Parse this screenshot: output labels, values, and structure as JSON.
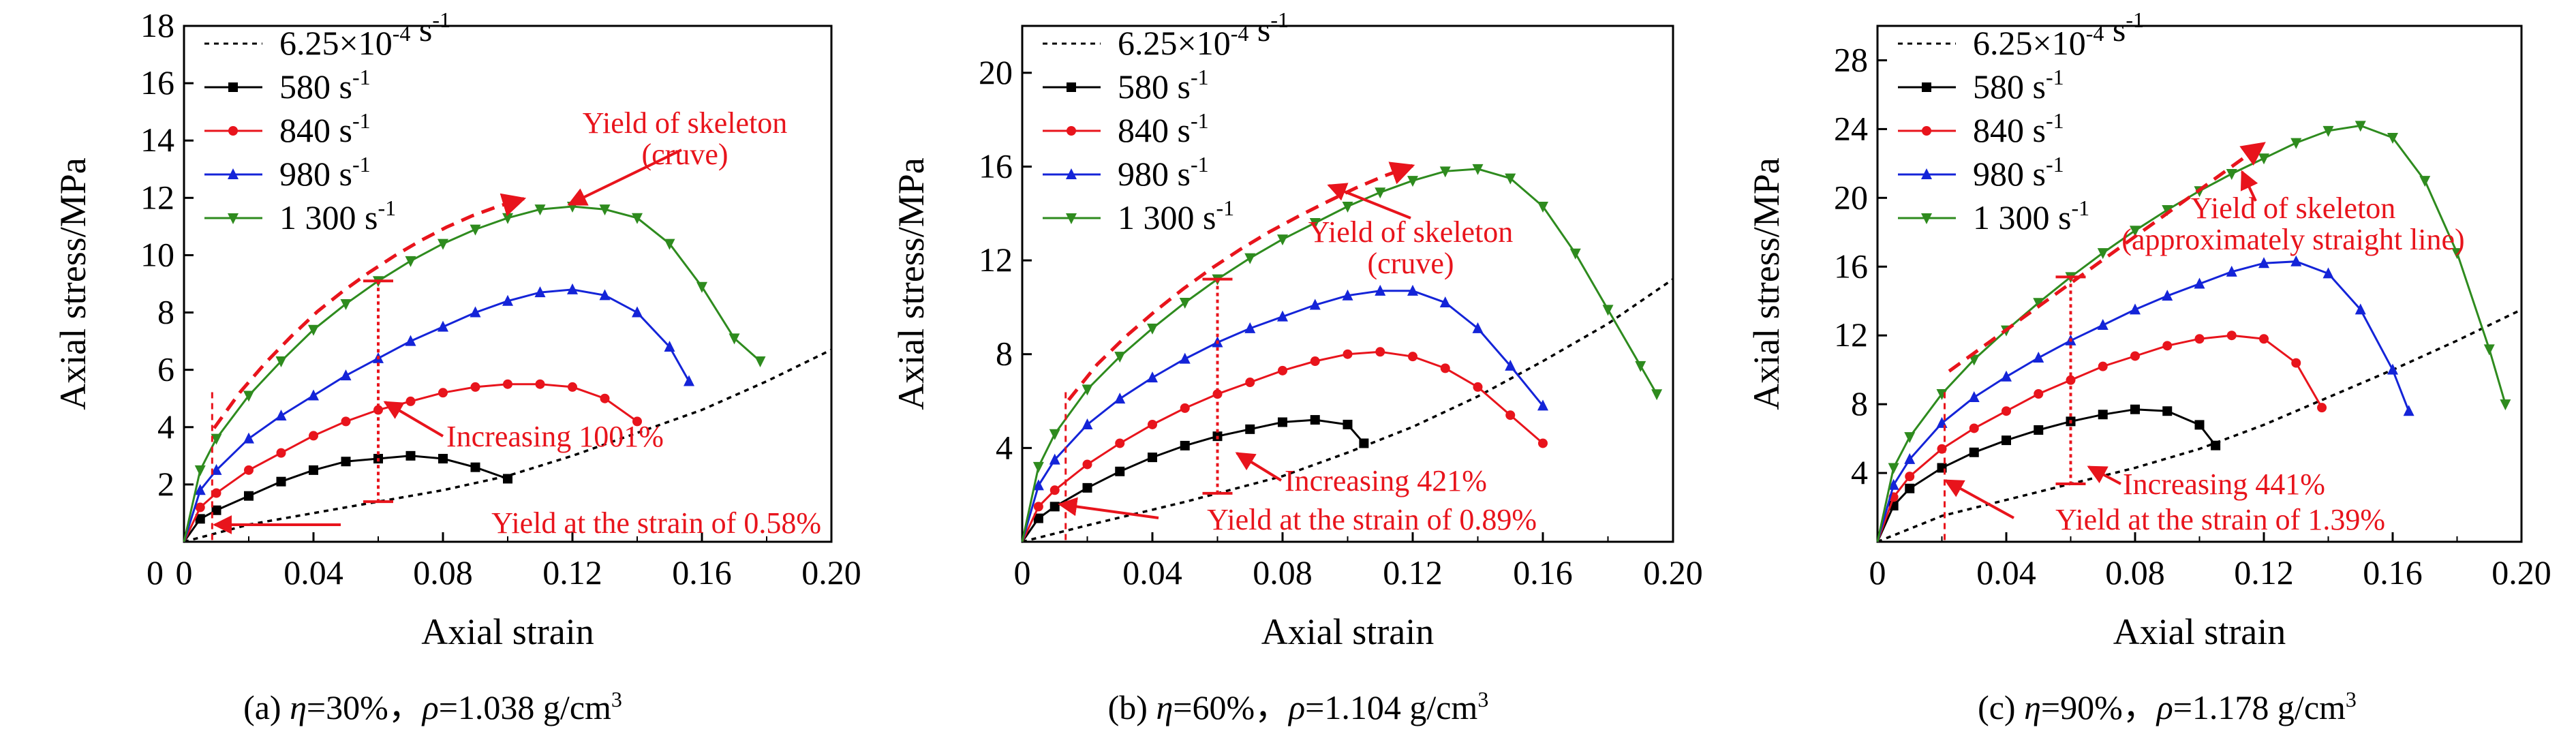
{
  "figure": {
    "panels": [
      {
        "caption_prefix": "(a) ",
        "eta_sym": "η",
        "eta_val": "=30%，",
        "rho_sym": "ρ",
        "rho_val": "=1.038 g/cm",
        "rho_exp": "3"
      },
      {
        "caption_prefix": "(b) ",
        "eta_sym": "η",
        "eta_val": "=60%，",
        "rho_sym": "ρ",
        "rho_val": "=1.104 g/cm",
        "rho_exp": "3"
      },
      {
        "caption_prefix": "(c) ",
        "eta_sym": "η",
        "eta_val": "=90%，",
        "rho_sym": "ρ",
        "rho_val": "=1.178 g/cm",
        "rho_exp": "3"
      }
    ]
  },
  "chart_data": [
    {
      "type": "line",
      "xlabel": "Axial strain",
      "ylabel": "Axial stress/MPa",
      "xlim": [
        0,
        0.2
      ],
      "ylim": [
        0,
        18
      ],
      "xticks": [
        "0",
        "0.04",
        "0.08",
        "0.12",
        "0.16",
        "0.20"
      ],
      "yticks": [
        "0",
        "2",
        "4",
        "6",
        "8",
        "10",
        "12",
        "14",
        "16",
        "18"
      ],
      "legend_position": "top-left",
      "series": [
        {
          "name": "6.25×10⁻⁴ s⁻¹",
          "color": "#000000",
          "style": "dotted",
          "x": [
            0,
            0.02,
            0.05,
            0.08,
            0.1,
            0.12,
            0.14,
            0.16,
            0.18,
            0.2
          ],
          "y": [
            0,
            0.6,
            1.2,
            1.8,
            2.3,
            3.0,
            3.8,
            4.6,
            5.6,
            6.7
          ]
        },
        {
          "name": "580 s⁻¹",
          "color": "#000000",
          "marker": "square",
          "x": [
            0,
            0.005,
            0.01,
            0.02,
            0.03,
            0.04,
            0.05,
            0.06,
            0.07,
            0.08,
            0.09,
            0.1
          ],
          "y": [
            0,
            0.8,
            1.1,
            1.6,
            2.1,
            2.5,
            2.8,
            2.9,
            3.0,
            2.9,
            2.6,
            2.2
          ]
        },
        {
          "name": "840 s⁻¹",
          "color": "#e8141c",
          "marker": "circle",
          "x": [
            0,
            0.005,
            0.01,
            0.02,
            0.03,
            0.04,
            0.05,
            0.06,
            0.07,
            0.08,
            0.09,
            0.1,
            0.11,
            0.12,
            0.13,
            0.14
          ],
          "y": [
            0,
            1.2,
            1.7,
            2.5,
            3.1,
            3.7,
            4.2,
            4.6,
            4.9,
            5.2,
            5.4,
            5.5,
            5.5,
            5.4,
            5.0,
            4.2
          ]
        },
        {
          "name": "980 s⁻¹",
          "color": "#1424d8",
          "marker": "triangle-up",
          "x": [
            0,
            0.005,
            0.01,
            0.02,
            0.03,
            0.04,
            0.05,
            0.06,
            0.07,
            0.08,
            0.09,
            0.1,
            0.11,
            0.12,
            0.13,
            0.14,
            0.15,
            0.156
          ],
          "y": [
            0,
            1.8,
            2.5,
            3.6,
            4.4,
            5.1,
            5.8,
            6.4,
            7.0,
            7.5,
            8.0,
            8.4,
            8.7,
            8.8,
            8.6,
            8.0,
            6.8,
            5.6
          ]
        },
        {
          "name": "1 300 s⁻¹",
          "color": "#2e8b1e",
          "marker": "triangle-down",
          "x": [
            0,
            0.005,
            0.01,
            0.02,
            0.03,
            0.04,
            0.05,
            0.06,
            0.07,
            0.08,
            0.09,
            0.1,
            0.11,
            0.12,
            0.13,
            0.14,
            0.15,
            0.16,
            0.17,
            0.178
          ],
          "y": [
            0,
            2.5,
            3.6,
            5.1,
            6.3,
            7.4,
            8.3,
            9.1,
            9.8,
            10.4,
            10.9,
            11.3,
            11.6,
            11.7,
            11.6,
            11.3,
            10.4,
            8.9,
            7.1,
            6.3
          ]
        }
      ],
      "annotations": {
        "yield_skeleton": "Yield of skeleton",
        "yield_skeleton_shape": "(cruve)",
        "increasing": "Increasing 1001%",
        "yield_strain": "Yield at the strain of 0.58%",
        "yield_strain_value": 0.0058,
        "increase_marker_strain": 0.06
      }
    },
    {
      "type": "line",
      "xlabel": "Axial strain",
      "ylabel": "Axial stress/MPa",
      "xlim": [
        0,
        0.2
      ],
      "ylim": [
        0,
        22
      ],
      "xticks": [
        "0",
        "0.04",
        "0.08",
        "0.12",
        "0.16",
        "0.20"
      ],
      "yticks": [
        "4",
        "8",
        "12",
        "16",
        "20"
      ],
      "legend_position": "top-left",
      "series": [
        {
          "name": "6.25×10⁻⁴ s⁻¹",
          "color": "#000000",
          "style": "dotted",
          "x": [
            0,
            0.02,
            0.05,
            0.08,
            0.1,
            0.12,
            0.14,
            0.16,
            0.18,
            0.2
          ],
          "y": [
            0,
            0.7,
            1.7,
            2.8,
            3.8,
            4.9,
            6.2,
            7.7,
            9.3,
            11.2
          ]
        },
        {
          "name": "580 s⁻¹",
          "color": "#000000",
          "marker": "square",
          "x": [
            0,
            0.005,
            0.01,
            0.02,
            0.03,
            0.04,
            0.05,
            0.06,
            0.07,
            0.08,
            0.09,
            0.1,
            0.105
          ],
          "y": [
            0,
            1.0,
            1.5,
            2.3,
            3.0,
            3.6,
            4.1,
            4.5,
            4.8,
            5.1,
            5.2,
            5.0,
            4.2
          ]
        },
        {
          "name": "840 s⁻¹",
          "color": "#e8141c",
          "marker": "circle",
          "x": [
            0,
            0.005,
            0.01,
            0.02,
            0.03,
            0.04,
            0.05,
            0.06,
            0.07,
            0.08,
            0.09,
            0.1,
            0.11,
            0.12,
            0.13,
            0.14,
            0.15,
            0.16
          ],
          "y": [
            0,
            1.5,
            2.2,
            3.3,
            4.2,
            5.0,
            5.7,
            6.3,
            6.8,
            7.3,
            7.7,
            8.0,
            8.1,
            7.9,
            7.4,
            6.6,
            5.4,
            4.2
          ]
        },
        {
          "name": "980 s⁻¹",
          "color": "#1424d8",
          "marker": "triangle-up",
          "x": [
            0,
            0.005,
            0.01,
            0.02,
            0.03,
            0.04,
            0.05,
            0.06,
            0.07,
            0.08,
            0.09,
            0.1,
            0.11,
            0.12,
            0.13,
            0.14,
            0.15,
            0.16
          ],
          "y": [
            0,
            2.4,
            3.5,
            5.0,
            6.1,
            7.0,
            7.8,
            8.5,
            9.1,
            9.6,
            10.1,
            10.5,
            10.7,
            10.7,
            10.2,
            9.1,
            7.5,
            5.8
          ]
        },
        {
          "name": "1 300 s⁻¹",
          "color": "#2e8b1e",
          "marker": "triangle-down",
          "x": [
            0,
            0.005,
            0.01,
            0.02,
            0.03,
            0.04,
            0.05,
            0.06,
            0.07,
            0.08,
            0.09,
            0.1,
            0.11,
            0.12,
            0.13,
            0.14,
            0.15,
            0.16,
            0.17,
            0.18,
            0.19,
            0.195
          ],
          "y": [
            0,
            3.2,
            4.6,
            6.5,
            7.9,
            9.1,
            10.2,
            11.2,
            12.1,
            12.9,
            13.6,
            14.3,
            14.9,
            15.4,
            15.8,
            15.9,
            15.5,
            14.3,
            12.3,
            9.9,
            7.5,
            6.3
          ]
        }
      ],
      "annotations": {
        "yield_skeleton": "Yield of skeleton",
        "yield_skeleton_shape": "(cruve)",
        "increasing": "Increasing 421%",
        "yield_strain": "Yield at the strain of 0.89%",
        "yield_strain_value": 0.0089,
        "increase_marker_strain": 0.06
      }
    },
    {
      "type": "line",
      "xlabel": "Axial strain",
      "ylabel": "Axial stress/MPa",
      "xlim": [
        0,
        0.2
      ],
      "ylim": [
        0,
        30
      ],
      "xticks": [
        "0",
        "0.04",
        "0.08",
        "0.12",
        "0.16",
        "0.20"
      ],
      "yticks": [
        "4",
        "8",
        "12",
        "16",
        "20",
        "24",
        "28"
      ],
      "legend_position": "top-left",
      "series": [
        {
          "name": "6.25×10⁻⁴ s⁻¹",
          "color": "#000000",
          "style": "dotted",
          "x": [
            0,
            0.02,
            0.05,
            0.08,
            0.1,
            0.12,
            0.14,
            0.16,
            0.18,
            0.2
          ],
          "y": [
            0,
            1.5,
            2.9,
            4.3,
            5.4,
            6.8,
            8.4,
            10.0,
            11.7,
            13.5
          ]
        },
        {
          "name": "580 s⁻¹",
          "color": "#000000",
          "marker": "square",
          "x": [
            0,
            0.005,
            0.01,
            0.02,
            0.03,
            0.04,
            0.05,
            0.06,
            0.07,
            0.08,
            0.09,
            0.1,
            0.105
          ],
          "y": [
            0,
            2.1,
            3.1,
            4.3,
            5.2,
            5.9,
            6.5,
            7.0,
            7.4,
            7.7,
            7.6,
            6.8,
            5.6
          ]
        },
        {
          "name": "840 s⁻¹",
          "color": "#e8141c",
          "marker": "circle",
          "x": [
            0,
            0.005,
            0.01,
            0.02,
            0.03,
            0.04,
            0.05,
            0.06,
            0.07,
            0.08,
            0.09,
            0.1,
            0.11,
            0.12,
            0.13,
            0.138
          ],
          "y": [
            0,
            2.6,
            3.8,
            5.4,
            6.6,
            7.6,
            8.6,
            9.4,
            10.2,
            10.8,
            11.4,
            11.8,
            12.0,
            11.8,
            10.4,
            7.8
          ]
        },
        {
          "name": "980 s⁻¹",
          "color": "#1424d8",
          "marker": "triangle-up",
          "x": [
            0,
            0.005,
            0.01,
            0.02,
            0.03,
            0.04,
            0.05,
            0.06,
            0.07,
            0.08,
            0.09,
            0.1,
            0.11,
            0.12,
            0.13,
            0.14,
            0.15,
            0.16,
            0.165
          ],
          "y": [
            0,
            3.3,
            4.8,
            6.9,
            8.4,
            9.6,
            10.7,
            11.7,
            12.6,
            13.5,
            14.3,
            15.0,
            15.7,
            16.2,
            16.3,
            15.6,
            13.5,
            10.0,
            7.6
          ]
        },
        {
          "name": "1 300 s⁻¹",
          "color": "#2e8b1e",
          "marker": "triangle-down",
          "x": [
            0,
            0.005,
            0.01,
            0.02,
            0.03,
            0.04,
            0.05,
            0.06,
            0.07,
            0.08,
            0.09,
            0.1,
            0.11,
            0.12,
            0.13,
            0.14,
            0.15,
            0.16,
            0.17,
            0.18,
            0.19,
            0.195
          ],
          "y": [
            0,
            4.3,
            6.1,
            8.6,
            10.6,
            12.3,
            13.9,
            15.4,
            16.8,
            18.1,
            19.3,
            20.4,
            21.4,
            22.3,
            23.2,
            23.9,
            24.2,
            23.5,
            21.0,
            16.8,
            11.2,
            8.0
          ]
        }
      ],
      "annotations": {
        "yield_skeleton": "Yield of skeleton",
        "yield_skeleton_shape": "(approximately straight line)",
        "increasing": "Increasing 441%",
        "yield_strain": "Yield at the strain of 1.39%",
        "yield_strain_value": 0.0139,
        "increase_marker_strain": 0.06
      }
    }
  ]
}
